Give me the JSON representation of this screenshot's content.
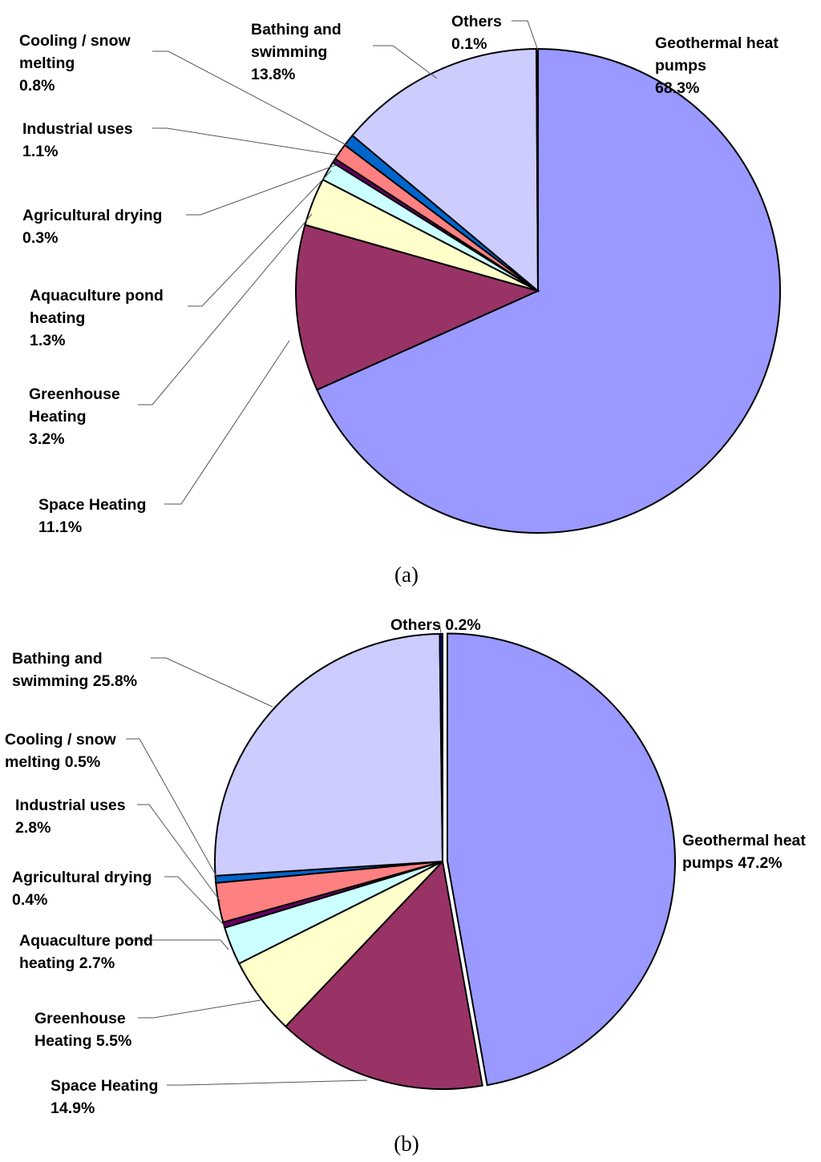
{
  "chart_data": [
    {
      "type": "pie",
      "caption": "(a)",
      "start_angle_deg": 0,
      "direction": "clockwise",
      "slices": [
        {
          "name": "Geothermal heat pumps",
          "value": 68.3,
          "label_lines": [
            "Geothermal heat",
            "pumps",
            "68.3%"
          ],
          "color": "#9999ff"
        },
        {
          "name": "Space Heating",
          "value": 11.1,
          "label_lines": [
            "Space Heating",
            "11.1%"
          ],
          "color": "#993366"
        },
        {
          "name": "Greenhouse Heating",
          "value": 3.2,
          "label_lines": [
            "Greenhouse",
            "Heating",
            "3.2%"
          ],
          "color": "#ffffcc"
        },
        {
          "name": "Aquaculture pond heating",
          "value": 1.3,
          "label_lines": [
            "Aquaculture pond",
            "heating",
            "1.3%"
          ],
          "color": "#ccffff"
        },
        {
          "name": "Agricultural drying",
          "value": 0.3,
          "label_lines": [
            "Agricultural drying",
            "0.3%"
          ],
          "color": "#660066"
        },
        {
          "name": "Industrial uses",
          "value": 1.1,
          "label_lines": [
            "Industrial uses",
            "1.1%"
          ],
          "color": "#ff8080"
        },
        {
          "name": "Cooling / snow melting",
          "value": 0.8,
          "label_lines": [
            "Cooling / snow",
            "melting",
            "0.8%"
          ],
          "color": "#0066cc"
        },
        {
          "name": "Bathing and swimming",
          "value": 13.8,
          "label_lines": [
            "Bathing and",
            "swimming",
            "13.8%"
          ],
          "color": "#ccccff"
        },
        {
          "name": "Others",
          "value": 0.1,
          "label_lines": [
            "Others",
            "0.1%"
          ],
          "color": "#000080"
        }
      ]
    },
    {
      "type": "pie",
      "caption": "(b)",
      "start_angle_deg": 0,
      "direction": "clockwise",
      "exploded": [
        "Geothermal heat pumps"
      ],
      "slices": [
        {
          "name": "Geothermal heat pumps",
          "value": 47.2,
          "label_lines": [
            "Geothermal heat",
            "pumps 47.2%"
          ],
          "color": "#9999ff"
        },
        {
          "name": "Space Heating",
          "value": 14.9,
          "label_lines": [
            "Space Heating",
            "14.9%"
          ],
          "color": "#993366"
        },
        {
          "name": "Greenhouse Heating",
          "value": 5.5,
          "label_lines": [
            "Greenhouse",
            "Heating 5.5%"
          ],
          "color": "#ffffcc"
        },
        {
          "name": "Aquaculture pond heating",
          "value": 2.7,
          "label_lines": [
            "Aquaculture pond",
            "heating 2.7%"
          ],
          "color": "#ccffff"
        },
        {
          "name": "Agricultural drying",
          "value": 0.4,
          "label_lines": [
            "Agricultural drying",
            "0.4%"
          ],
          "color": "#660066"
        },
        {
          "name": "Industrial uses",
          "value": 2.8,
          "label_lines": [
            "Industrial uses",
            "2.8%"
          ],
          "color": "#ff8080"
        },
        {
          "name": "Cooling / snow melting",
          "value": 0.5,
          "label_lines": [
            "Cooling / snow",
            "melting 0.5%"
          ],
          "color": "#0066cc"
        },
        {
          "name": "Bathing and swimming",
          "value": 25.8,
          "label_lines": [
            "Bathing and",
            "swimming 25.8%"
          ],
          "color": "#ccccff"
        },
        {
          "name": "Others",
          "value": 0.2,
          "label_lines": [
            "Others 0.2%"
          ],
          "color": "#000080"
        }
      ]
    }
  ]
}
